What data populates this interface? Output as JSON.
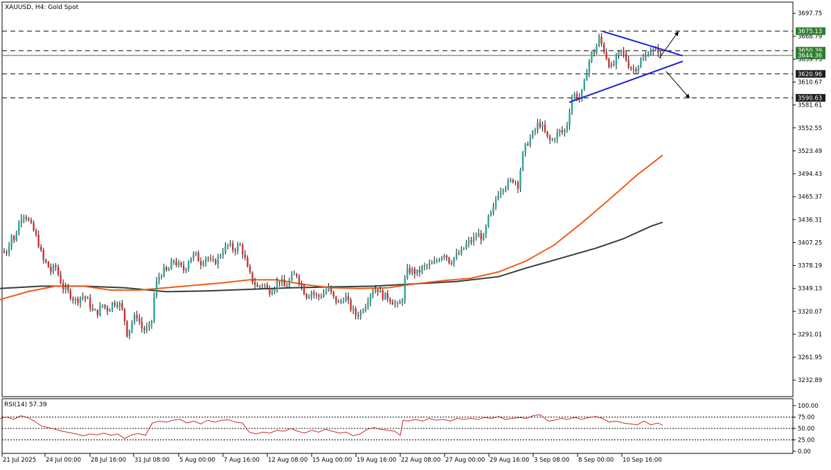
{
  "header": {
    "symbol_label": "XAUUSD, H4:  Gold Spot"
  },
  "colors": {
    "up": "#26a69a",
    "down": "#d32f2f",
    "wick": "#111111",
    "ema_fast": "#f05a16",
    "ema_slow": "#2f3e3a",
    "triangle": "#1f1fd6",
    "level_line": "#2e7d32",
    "level_badge": "#2e7d32",
    "rsi_line": "#c62828",
    "grid_dash": "#000000"
  },
  "price_axis": {
    "ticks": [
      "3697.75",
      "3668.79",
      "3639.73",
      "3610.67",
      "3581.61",
      "3552.55",
      "3523.49",
      "3494.43",
      "3465.37",
      "3436.31",
      "3407.25",
      "3378.19",
      "3349.13",
      "3320.07",
      "3291.01",
      "3261.95",
      "3232.89"
    ],
    "highlight_labels": [
      "3675.13",
      "3650.39",
      "3644.36",
      "3620.96",
      "3590.63"
    ]
  },
  "rsi_panel": {
    "label": "RSI(14) 57.39",
    "ticks": [
      "100.00",
      "75.00",
      "50.00",
      "25.00",
      "0.00"
    ]
  },
  "time_axis": {
    "labels": [
      "21 Jul 2025",
      "24 Jul 00:00",
      "28 Jul 16:00",
      "31 Jul 08:00",
      "5 Aug 00:00",
      "7 Aug 16:00",
      "12 Aug 08:00",
      "15 Aug 00:00",
      "19 Aug 16:00",
      "22 Aug 08:00",
      "27 Aug 00:00",
      "29 Aug 16:00",
      "3 Sep 08:00",
      "8 Sep 00:00",
      "10 Sep 16:00"
    ]
  },
  "chart_data": {
    "type": "candlestick",
    "symbol": "XAUUSD",
    "timeframe": "H4",
    "title": "XAUUSD, H4:  Gold Spot",
    "ylim": [
      3212,
      3712
    ],
    "current_price": 3644.36,
    "levels": [
      3675.13,
      3650.39,
      3620.96,
      3590.63
    ],
    "price_path": [
      [
        0,
        3380
      ],
      [
        4,
        3398
      ],
      [
        8,
        3392
      ],
      [
        12,
        3402
      ],
      [
        16,
        3418
      ],
      [
        20,
        3408
      ],
      [
        26,
        3428
      ],
      [
        32,
        3445
      ],
      [
        38,
        3440
      ],
      [
        44,
        3430
      ],
      [
        50,
        3420
      ],
      [
        56,
        3405
      ],
      [
        62,
        3385
      ],
      [
        68,
        3380
      ],
      [
        74,
        3370
      ],
      [
        80,
        3378
      ],
      [
        86,
        3362
      ],
      [
        92,
        3348
      ],
      [
        98,
        3345
      ],
      [
        104,
        3338
      ],
      [
        110,
        3333
      ],
      [
        118,
        3340
      ],
      [
        126,
        3335
      ],
      [
        134,
        3320
      ],
      [
        140,
        3318
      ],
      [
        148,
        3328
      ],
      [
        156,
        3322
      ],
      [
        164,
        3332
      ],
      [
        172,
        3330
      ],
      [
        178,
        3318
      ],
      [
        184,
        3290
      ],
      [
        192,
        3310
      ],
      [
        198,
        3315
      ],
      [
        206,
        3296
      ],
      [
        212,
        3298
      ],
      [
        218,
        3300
      ],
      [
        224,
        3352
      ],
      [
        230,
        3365
      ],
      [
        236,
        3372
      ],
      [
        242,
        3370
      ],
      [
        250,
        3385
      ],
      [
        258,
        3378
      ],
      [
        266,
        3372
      ],
      [
        274,
        3388
      ],
      [
        282,
        3392
      ],
      [
        290,
        3382
      ],
      [
        298,
        3390
      ],
      [
        306,
        3380
      ],
      [
        314,
        3386
      ],
      [
        322,
        3398
      ],
      [
        330,
        3404
      ],
      [
        338,
        3398
      ],
      [
        346,
        3405
      ],
      [
        352,
        3392
      ],
      [
        358,
        3372
      ],
      [
        364,
        3360
      ],
      [
        372,
        3350
      ],
      [
        380,
        3356
      ],
      [
        388,
        3345
      ],
      [
        396,
        3352
      ],
      [
        404,
        3360
      ],
      [
        412,
        3350
      ],
      [
        420,
        3362
      ],
      [
        428,
        3368
      ],
      [
        434,
        3355
      ],
      [
        442,
        3340
      ],
      [
        450,
        3345
      ],
      [
        458,
        3338
      ],
      [
        466,
        3342
      ],
      [
        474,
        3350
      ],
      [
        482,
        3336
      ],
      [
        490,
        3330
      ],
      [
        498,
        3340
      ],
      [
        506,
        3325
      ],
      [
        514,
        3315
      ],
      [
        520,
        3318
      ],
      [
        528,
        3330
      ],
      [
        536,
        3345
      ],
      [
        544,
        3350
      ],
      [
        552,
        3340
      ],
      [
        560,
        3338
      ],
      [
        568,
        3332
      ],
      [
        576,
        3325
      ],
      [
        582,
        3340
      ],
      [
        586,
        3370
      ],
      [
        594,
        3372
      ],
      [
        602,
        3368
      ],
      [
        610,
        3375
      ],
      [
        618,
        3378
      ],
      [
        626,
        3380
      ],
      [
        634,
        3388
      ],
      [
        642,
        3394
      ],
      [
        650,
        3382
      ],
      [
        658,
        3390
      ],
      [
        666,
        3395
      ],
      [
        674,
        3406
      ],
      [
        682,
        3410
      ],
      [
        690,
        3418
      ],
      [
        698,
        3412
      ],
      [
        706,
        3440
      ],
      [
        712,
        3448
      ],
      [
        718,
        3470
      ],
      [
        726,
        3478
      ],
      [
        734,
        3482
      ],
      [
        742,
        3488
      ],
      [
        748,
        3480
      ],
      [
        754,
        3515
      ],
      [
        760,
        3532
      ],
      [
        766,
        3540
      ],
      [
        772,
        3548
      ],
      [
        778,
        3560
      ],
      [
        784,
        3552
      ],
      [
        790,
        3540
      ],
      [
        796,
        3535
      ],
      [
        802,
        3542
      ],
      [
        808,
        3548
      ],
      [
        814,
        3546
      ],
      [
        820,
        3560
      ],
      [
        824,
        3585
      ],
      [
        828,
        3596
      ],
      [
        836,
        3590
      ],
      [
        842,
        3600
      ],
      [
        848,
        3630
      ],
      [
        854,
        3646
      ],
      [
        860,
        3650
      ],
      [
        864,
        3668
      ],
      [
        868,
        3660
      ],
      [
        872,
        3652
      ],
      [
        878,
        3636
      ],
      [
        884,
        3628
      ],
      [
        890,
        3640
      ],
      [
        896,
        3650
      ],
      [
        902,
        3644
      ],
      [
        908,
        3632
      ],
      [
        914,
        3626
      ],
      [
        920,
        3630
      ],
      [
        926,
        3638
      ],
      [
        932,
        3642
      ],
      [
        938,
        3654
      ],
      [
        944,
        3648
      ],
      [
        950,
        3652
      ],
      [
        956,
        3638
      ]
    ],
    "ema_fast": [
      [
        0,
        3335
      ],
      [
        40,
        3345
      ],
      [
        80,
        3352
      ],
      [
        120,
        3352
      ],
      [
        160,
        3347
      ],
      [
        200,
        3347
      ],
      [
        240,
        3350
      ],
      [
        280,
        3353
      ],
      [
        320,
        3356
      ],
      [
        360,
        3360
      ],
      [
        400,
        3360
      ],
      [
        440,
        3354
      ],
      [
        480,
        3350
      ],
      [
        520,
        3349
      ],
      [
        560,
        3350
      ],
      [
        600,
        3355
      ],
      [
        640,
        3359
      ],
      [
        680,
        3362
      ],
      [
        720,
        3370
      ],
      [
        760,
        3384
      ],
      [
        800,
        3404
      ],
      [
        840,
        3432
      ],
      [
        880,
        3462
      ],
      [
        920,
        3493
      ],
      [
        957,
        3518
      ]
    ],
    "ema_slow": [
      [
        0,
        3349
      ],
      [
        60,
        3352
      ],
      [
        120,
        3352
      ],
      [
        180,
        3350
      ],
      [
        240,
        3345
      ],
      [
        300,
        3346
      ],
      [
        360,
        3348
      ],
      [
        420,
        3350
      ],
      [
        480,
        3351
      ],
      [
        540,
        3352
      ],
      [
        600,
        3355
      ],
      [
        660,
        3358
      ],
      [
        720,
        3364
      ],
      [
        760,
        3375
      ],
      [
        800,
        3385
      ],
      [
        860,
        3400
      ],
      [
        900,
        3412
      ],
      [
        940,
        3428
      ],
      [
        957,
        3433
      ]
    ],
    "triangle": {
      "upper": [
        [
          870,
          3675
        ],
        [
          986,
          3644
        ]
      ],
      "lower": [
        [
          822,
          3585
        ],
        [
          986,
          3637
        ]
      ]
    },
    "breakout_arrows": [
      {
        "direction": "up",
        "from": [
          952,
          3641
        ],
        "to": [
          980,
          3675
        ]
      },
      {
        "direction": "down",
        "from": [
          962,
          3624
        ],
        "to": [
          996,
          3590
        ]
      }
    ],
    "rsi": {
      "period": 14,
      "last": 57.39,
      "ylim": [
        0,
        100
      ],
      "levels": [
        75,
        50,
        25
      ],
      "series": [
        [
          0,
          72
        ],
        [
          10,
          75
        ],
        [
          20,
          70
        ],
        [
          30,
          78
        ],
        [
          40,
          74
        ],
        [
          50,
          66
        ],
        [
          60,
          55
        ],
        [
          70,
          52
        ],
        [
          80,
          48
        ],
        [
          90,
          44
        ],
        [
          100,
          41
        ],
        [
          110,
          38
        ],
        [
          120,
          34
        ],
        [
          130,
          38
        ],
        [
          140,
          36
        ],
        [
          150,
          40
        ],
        [
          160,
          35
        ],
        [
          170,
          38
        ],
        [
          180,
          28
        ],
        [
          190,
          36
        ],
        [
          200,
          39
        ],
        [
          210,
          35
        ],
        [
          220,
          62
        ],
        [
          230,
          66
        ],
        [
          240,
          64
        ],
        [
          250,
          68
        ],
        [
          260,
          70
        ],
        [
          270,
          62
        ],
        [
          280,
          66
        ],
        [
          290,
          60
        ],
        [
          300,
          68
        ],
        [
          310,
          64
        ],
        [
          320,
          68
        ],
        [
          330,
          69
        ],
        [
          340,
          64
        ],
        [
          350,
          62
        ],
        [
          360,
          42
        ],
        [
          370,
          38
        ],
        [
          380,
          42
        ],
        [
          390,
          40
        ],
        [
          400,
          46
        ],
        [
          410,
          44
        ],
        [
          420,
          50
        ],
        [
          430,
          44
        ],
        [
          440,
          40
        ],
        [
          450,
          46
        ],
        [
          460,
          42
        ],
        [
          470,
          48
        ],
        [
          480,
          44
        ],
        [
          490,
          40
        ],
        [
          500,
          42
        ],
        [
          510,
          34
        ],
        [
          520,
          38
        ],
        [
          530,
          48
        ],
        [
          540,
          52
        ],
        [
          550,
          48
        ],
        [
          560,
          46
        ],
        [
          570,
          44
        ],
        [
          578,
          35
        ],
        [
          582,
          68
        ],
        [
          590,
          66
        ],
        [
          600,
          70
        ],
        [
          610,
          66
        ],
        [
          620,
          72
        ],
        [
          630,
          68
        ],
        [
          640,
          70
        ],
        [
          650,
          66
        ],
        [
          660,
          72
        ],
        [
          670,
          70
        ],
        [
          680,
          72
        ],
        [
          690,
          70
        ],
        [
          700,
          74
        ],
        [
          710,
          72
        ],
        [
          720,
          76
        ],
        [
          730,
          70
        ],
        [
          740,
          72
        ],
        [
          750,
          74
        ],
        [
          760,
          72
        ],
        [
          770,
          78
        ],
        [
          780,
          80
        ],
        [
          785,
          74
        ],
        [
          792,
          66
        ],
        [
          800,
          68
        ],
        [
          810,
          72
        ],
        [
          820,
          70
        ],
        [
          830,
          74
        ],
        [
          840,
          70
        ],
        [
          850,
          74
        ],
        [
          860,
          76
        ],
        [
          870,
          72
        ],
        [
          880,
          64
        ],
        [
          890,
          66
        ],
        [
          900,
          62
        ],
        [
          910,
          60
        ],
        [
          920,
          58
        ],
        [
          930,
          66
        ],
        [
          940,
          58
        ],
        [
          950,
          62
        ],
        [
          957,
          57
        ]
      ]
    },
    "x_tick_labels": [
      "21 Jul 2025",
      "24 Jul 00:00",
      "28 Jul 16:00",
      "31 Jul 08:00",
      "5 Aug 00:00",
      "7 Aug 16:00",
      "12 Aug 08:00",
      "15 Aug 00:00",
      "19 Aug 16:00",
      "22 Aug 08:00",
      "27 Aug 00:00",
      "29 Aug 16:00",
      "3 Sep 08:00",
      "8 Sep 00:00",
      "10 Sep 16:00"
    ]
  }
}
